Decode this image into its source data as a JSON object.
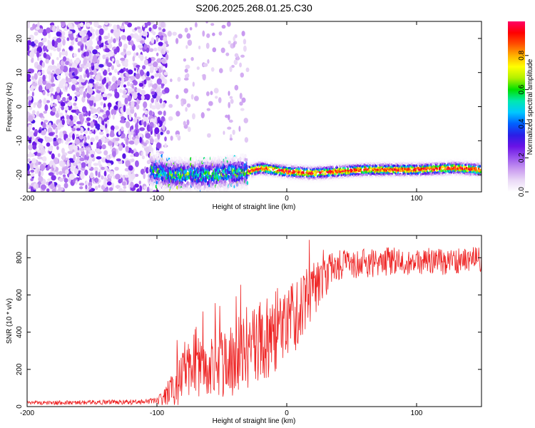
{
  "title": "S206.2025.268.01.25.C30",
  "chart_data": [
    {
      "type": "heatmap",
      "xlabel": "Height of straight line (km)",
      "ylabel": "Frequency (Hz)",
      "xlim": [
        -200,
        150
      ],
      "ylim": [
        -25,
        25
      ],
      "x_ticks": [
        -200,
        -100,
        0,
        100
      ],
      "y_ticks": [
        -20,
        -10,
        0,
        10,
        20
      ],
      "colorbar": {
        "label": "Normalized spectral amplitude",
        "range": [
          0,
          1
        ],
        "ticks": [
          0.0,
          0.2,
          0.4,
          0.6,
          0.8
        ],
        "colors": [
          "#ffffff",
          "#ead9f6",
          "#c99af0",
          "#9a55ee",
          "#6a13e6",
          "#2a1ee6",
          "#0060ff",
          "#00c8ff",
          "#00e8b0",
          "#00e000",
          "#b0f000",
          "#ffff00",
          "#ffb000",
          "#ff5000",
          "#ff0000",
          "#ff0066"
        ]
      },
      "signal_track": {
        "description_free": true,
        "x_start": -105,
        "x_end": 150,
        "frequency": [
          [
            -105,
            -18.5
          ],
          [
            -90,
            -20
          ],
          [
            -60,
            -20
          ],
          [
            -30,
            -19
          ],
          [
            -20,
            -18
          ],
          [
            0,
            -19
          ],
          [
            20,
            -19.5
          ],
          [
            40,
            -19
          ],
          [
            60,
            -18.5
          ],
          [
            100,
            -18.5
          ],
          [
            130,
            -18
          ],
          [
            150,
            -18.5
          ]
        ],
        "peak_amplitude": 1.0
      },
      "noise_region": {
        "x_start": -200,
        "x_end": -100,
        "frequency_range": [
          -25,
          25
        ],
        "amplitude_range": [
          0.05,
          0.3
        ]
      }
    },
    {
      "type": "line",
      "xlabel": "Height of straight line (km)",
      "ylabel": "SNR (10 * v/v)",
      "xlim": [
        -200,
        150
      ],
      "ylim": [
        0,
        920
      ],
      "x_ticks": [
        -200,
        -100,
        0,
        100
      ],
      "y_ticks": [
        0,
        200,
        400,
        600,
        800
      ],
      "color": "#ee2222",
      "trend": [
        [
          -200,
          20
        ],
        [
          -110,
          25
        ],
        [
          -95,
          40
        ],
        [
          -85,
          120
        ],
        [
          -75,
          250
        ],
        [
          -60,
          220
        ],
        [
          -45,
          220
        ],
        [
          -30,
          320
        ],
        [
          -20,
          380
        ],
        [
          -10,
          400
        ],
        [
          0,
          450
        ],
        [
          10,
          520
        ],
        [
          20,
          620
        ],
        [
          30,
          700
        ],
        [
          40,
          760
        ],
        [
          60,
          770
        ],
        [
          80,
          780
        ],
        [
          100,
          780
        ],
        [
          120,
          780
        ],
        [
          150,
          790
        ]
      ],
      "noise_amplitude": [
        [
          -200,
          10
        ],
        [
          -100,
          15
        ],
        [
          -90,
          80
        ],
        [
          -75,
          200
        ],
        [
          -60,
          180
        ],
        [
          -40,
          200
        ],
        [
          -20,
          250
        ],
        [
          0,
          220
        ],
        [
          20,
          150
        ],
        [
          40,
          80
        ],
        [
          150,
          70
        ]
      ]
    }
  ]
}
